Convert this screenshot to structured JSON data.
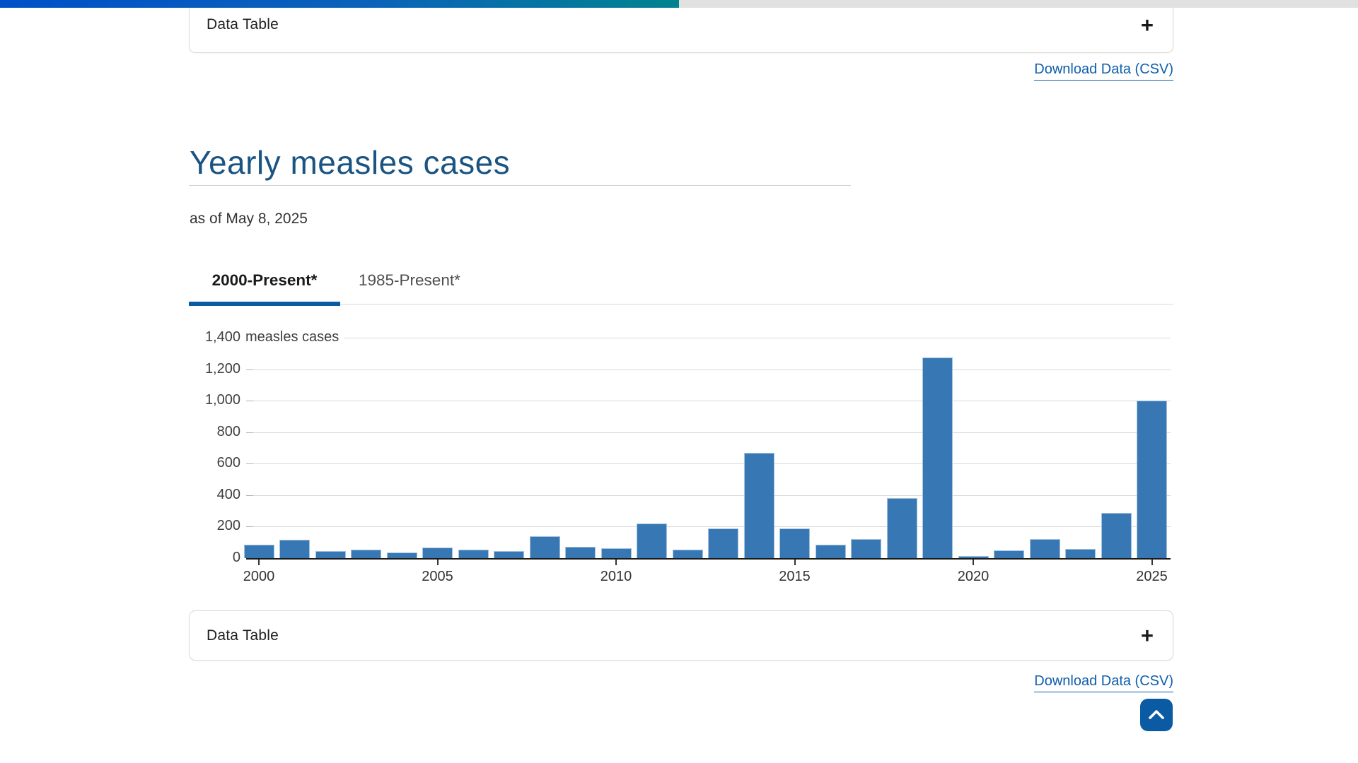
{
  "progress_bar": {
    "percent": 50,
    "track_color": "#e1e1e1",
    "fill_gradient": [
      "#0050c8",
      "#00838f"
    ]
  },
  "accordion_top": {
    "label": "Data Table",
    "expand_icon": "+"
  },
  "download_link_top": {
    "label": "Download Data (CSV)"
  },
  "header": {
    "title": "Yearly measles cases",
    "as_of": "as of May 8, 2025"
  },
  "tabs": [
    {
      "label": "2000-Present*",
      "active": true
    },
    {
      "label": "1985-Present*",
      "active": false
    }
  ],
  "chart_data": {
    "type": "bar",
    "title": "Yearly measles cases",
    "unit_label": "measles cases",
    "x": [
      2000,
      2001,
      2002,
      2003,
      2004,
      2005,
      2006,
      2007,
      2008,
      2009,
      2010,
      2011,
      2012,
      2013,
      2014,
      2015,
      2016,
      2017,
      2018,
      2019,
      2020,
      2021,
      2022,
      2023,
      2024,
      2025
    ],
    "values": [
      86,
      116,
      44,
      56,
      37,
      66,
      55,
      43,
      140,
      71,
      63,
      220,
      55,
      187,
      667,
      188,
      86,
      120,
      381,
      1274,
      13,
      49,
      121,
      59,
      285,
      1001
    ],
    "ylim": [
      0,
      1400
    ],
    "ytick_step": 200,
    "xticks": [
      2000,
      2005,
      2010,
      2015,
      2020,
      2025
    ],
    "bar_color": "#3778b4",
    "grid": true,
    "legend_position": "none"
  },
  "accordion_bottom": {
    "label": "Data Table",
    "expand_icon": "+"
  },
  "download_link_bottom": {
    "label": "Download Data (CSV)"
  },
  "back_to_top": {
    "icon": "chevron-up"
  }
}
